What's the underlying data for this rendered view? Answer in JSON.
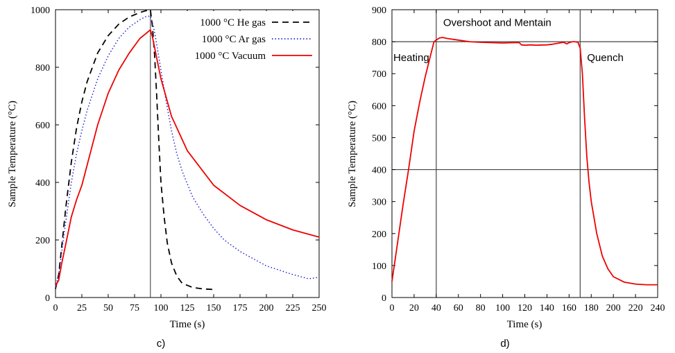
{
  "chart_data": [
    {
      "type": "line",
      "panel_caption": "c)",
      "xlabel": "Time (s)",
      "ylabel": "Sample Temperature (°C)",
      "xlim": [
        0,
        250
      ],
      "ylim": [
        0,
        1000
      ],
      "xticks": [
        "0",
        "25",
        "50",
        "75",
        "100",
        "125",
        "150",
        "175",
        "200",
        "225",
        "250"
      ],
      "yticks": [
        "0",
        "200",
        "400",
        "600",
        "800",
        "1000"
      ],
      "grid": false,
      "legend_position": "top-right",
      "vertical_marker_x": 90,
      "series": [
        {
          "name": "1000 °C He gas",
          "style": "dashed",
          "color": "#000000",
          "x": [
            0,
            3,
            6,
            10,
            15,
            20,
            25,
            30,
            40,
            50,
            60,
            70,
            80,
            85,
            90,
            92,
            94,
            96,
            98,
            100,
            103,
            106,
            110,
            115,
            120,
            130,
            140,
            150
          ],
          "y": [
            30,
            80,
            180,
            320,
            470,
            590,
            680,
            750,
            850,
            910,
            950,
            975,
            990,
            996,
            1000,
            940,
            840,
            700,
            540,
            400,
            280,
            190,
            120,
            75,
            50,
            35,
            30,
            28
          ]
        },
        {
          "name": "1000 °C Ar gas",
          "style": "dotted",
          "color": "#2222cc",
          "x": [
            0,
            3,
            6,
            10,
            15,
            20,
            25,
            30,
            40,
            50,
            60,
            70,
            80,
            85,
            90,
            93,
            96,
            100,
            105,
            110,
            115,
            120,
            130,
            140,
            150,
            160,
            175,
            200,
            225,
            240,
            250
          ],
          "y": [
            35,
            80,
            160,
            270,
            400,
            500,
            580,
            650,
            760,
            840,
            900,
            940,
            965,
            975,
            978,
            940,
            880,
            790,
            680,
            580,
            500,
            440,
            350,
            290,
            240,
            200,
            160,
            110,
            80,
            65,
            70
          ]
        },
        {
          "name": "1000 °C Vacuum",
          "style": "solid",
          "color": "#ee0000",
          "x": [
            0,
            3,
            6,
            10,
            15,
            20,
            25,
            30,
            40,
            50,
            60,
            70,
            80,
            85,
            90,
            92,
            95,
            100,
            110,
            125,
            150,
            175,
            200,
            225,
            250
          ],
          "y": [
            40,
            60,
            120,
            190,
            280,
            340,
            390,
            460,
            600,
            710,
            790,
            850,
            900,
            915,
            930,
            905,
            850,
            760,
            630,
            510,
            390,
            320,
            270,
            235,
            210
          ]
        }
      ]
    },
    {
      "type": "line",
      "panel_caption": "d)",
      "xlabel": "Time (s)",
      "ylabel": "Sample Temperature (°C)",
      "xlim": [
        0,
        240
      ],
      "ylim": [
        0,
        900
      ],
      "xticks": [
        "0",
        "20",
        "40",
        "60",
        "80",
        "100",
        "120",
        "140",
        "160",
        "180",
        "200",
        "220",
        "240"
      ],
      "yticks": [
        "0",
        "100",
        "200",
        "300",
        "400",
        "500",
        "600",
        "700",
        "800",
        "900"
      ],
      "grid": false,
      "vertical_lines_x": [
        40,
        170
      ],
      "horizontal_lines_y": [
        400,
        800
      ],
      "annotations": [
        {
          "text": "Heating",
          "x": 0,
          "y": 750
        },
        {
          "text": "Overshoot and Mentain",
          "x": 45,
          "y": 860
        },
        {
          "text": "Quench",
          "x": 175,
          "y": 750
        }
      ],
      "series": [
        {
          "color": "#ee0000",
          "x": [
            0,
            5,
            10,
            15,
            20,
            25,
            30,
            35,
            38,
            40,
            43,
            46,
            50,
            60,
            70,
            80,
            90,
            100,
            110,
            115,
            117,
            120,
            125,
            130,
            140,
            145,
            150,
            155,
            158,
            160,
            163,
            165,
            168,
            170,
            172,
            174,
            176,
            178,
            180,
            185,
            190,
            195,
            200,
            210,
            220,
            230,
            240
          ],
          "y": [
            50,
            170,
            290,
            400,
            520,
            610,
            690,
            760,
            800,
            805,
            812,
            813,
            810,
            805,
            800,
            798,
            797,
            796,
            797,
            797,
            790,
            789,
            790,
            789,
            790,
            792,
            795,
            798,
            793,
            797,
            800,
            800,
            798,
            780,
            700,
            560,
            440,
            360,
            300,
            200,
            130,
            90,
            65,
            48,
            42,
            40,
            40
          ]
        }
      ]
    }
  ]
}
